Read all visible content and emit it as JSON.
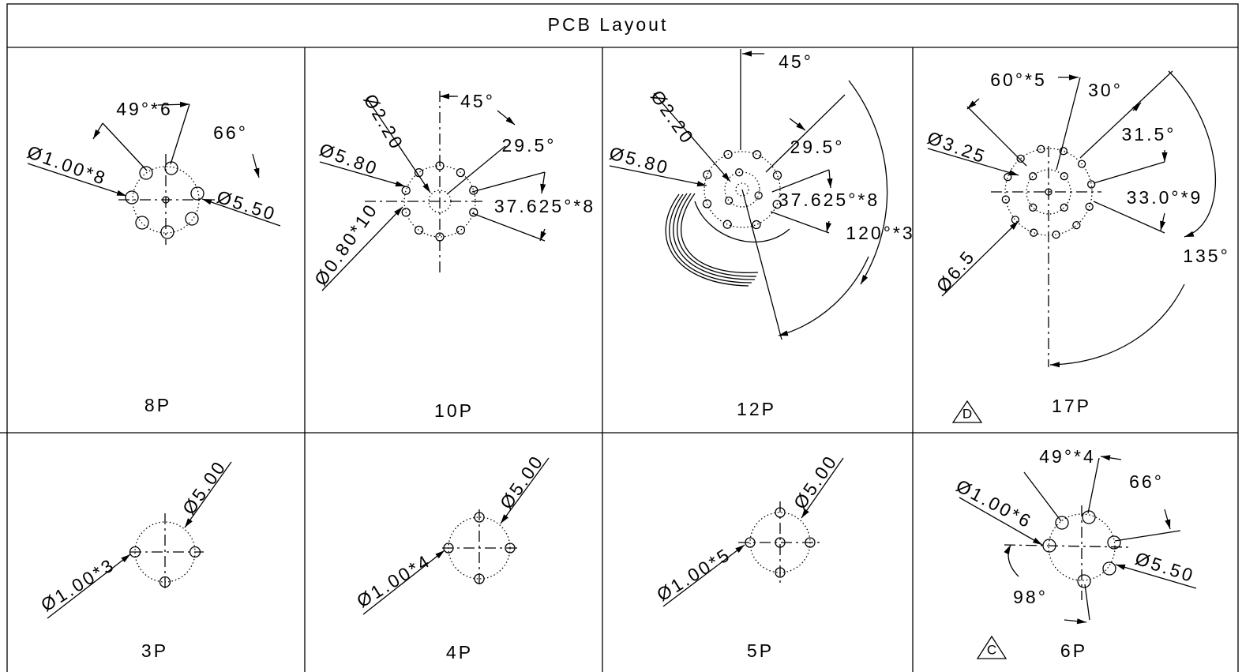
{
  "title": "PCB Layout",
  "panels": [
    {
      "label": "8P",
      "annotations": [
        "49°*6",
        "66°",
        "Ø1.00*8",
        "Ø5.50"
      ]
    },
    {
      "label": "10P",
      "annotations": [
        "Ø2.20",
        "45°",
        "Ø5.80",
        "29.5°",
        "37.625°*8",
        "Ø0.80*10"
      ]
    },
    {
      "label": "12P",
      "annotations": [
        "45°",
        "Ø2.20",
        "Ø5.80",
        "29.5°",
        "37.625°*8",
        "120°*3"
      ]
    },
    {
      "label": "17P",
      "revision": "D",
      "annotations": [
        "60°*5",
        "30°",
        "31.5°",
        "Ø3.25",
        "33.0°*9",
        "135°",
        "Ø6.5"
      ]
    },
    {
      "label": "3P",
      "annotations": [
        "Ø5.00",
        "Ø1.00*3"
      ]
    },
    {
      "label": "4P",
      "annotations": [
        "Ø5.00",
        "Ø1.00*4"
      ]
    },
    {
      "label": "5P",
      "annotations": [
        "Ø5.00",
        "Ø1.00*5"
      ]
    },
    {
      "label": "6P",
      "revision": "C",
      "annotations": [
        "49°*4",
        "66°",
        "Ø1.00*6",
        "Ø5.50",
        "98°"
      ]
    }
  ]
}
